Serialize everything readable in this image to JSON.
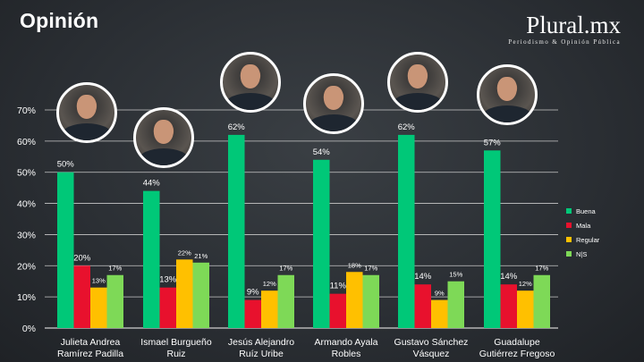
{
  "header": {
    "title": "Opinión"
  },
  "brand": {
    "name": "Plural.mx",
    "tagline": "Periodismo & Opinión Pública"
  },
  "legend": [
    {
      "label": "Buena",
      "color": "#00c878"
    },
    {
      "label": "Mala",
      "color": "#e8112d"
    },
    {
      "label": "Regular",
      "color": "#ffc000"
    },
    {
      "label": "N|S",
      "color": "#7ed957"
    }
  ],
  "chart_data": {
    "type": "bar",
    "categories": [
      [
        "Julieta Andrea",
        "Ramírez Padilla"
      ],
      [
        "Ismael Burgueño",
        "Ruiz"
      ],
      [
        "Jesús Alejandro",
        "Ruíz Uribe"
      ],
      [
        "Armando Ayala",
        "Robles"
      ],
      [
        "Gustavo Sánchez",
        "Vásquez"
      ],
      [
        "Guadalupe",
        "Gutiérrez Fregoso"
      ]
    ],
    "series": [
      {
        "name": "Buena",
        "color": "#00c878",
        "values": [
          50,
          44,
          62,
          54,
          62,
          57
        ]
      },
      {
        "name": "Mala",
        "color": "#e8112d",
        "values": [
          20,
          13,
          9,
          11,
          14,
          14
        ]
      },
      {
        "name": "Regular",
        "color": "#ffc000",
        "values": [
          13,
          22,
          12,
          18,
          9,
          12
        ]
      },
      {
        "name": "N|S",
        "color": "#7ed957",
        "values": [
          17,
          21,
          17,
          17,
          15,
          17
        ]
      }
    ],
    "ylim": [
      0,
      70
    ],
    "yticks": [
      "0%",
      "10%",
      "20%",
      "30%",
      "40%",
      "50%",
      "60%",
      "70%"
    ],
    "grid": true,
    "legend_position": "right",
    "value_suffix": "%"
  }
}
